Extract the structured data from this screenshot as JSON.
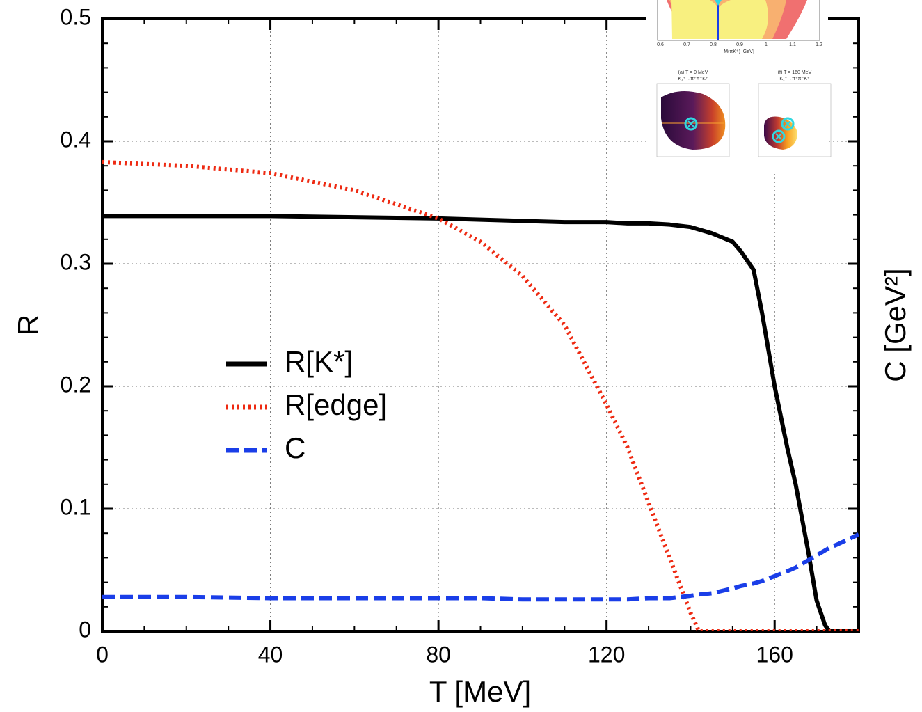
{
  "chart_data": {
    "type": "line",
    "xlabel": "T [MeV]",
    "ylabel": "R",
    "y2label": "C [GeV²]",
    "xlim": [
      0,
      180
    ],
    "ylim": [
      0,
      0.5
    ],
    "xticks": [
      0,
      40,
      80,
      120,
      160
    ],
    "yticks": [
      0,
      0.1,
      0.2,
      0.3,
      0.4,
      0.5
    ],
    "minor_xticks": [
      10,
      20,
      30,
      50,
      60,
      70,
      90,
      100,
      110,
      130,
      140,
      150,
      170
    ],
    "minor_yticks": [
      0.02,
      0.04,
      0.06,
      0.08,
      0.12,
      0.14,
      0.16,
      0.18,
      0.22,
      0.24,
      0.26,
      0.28,
      0.32,
      0.34,
      0.36,
      0.38,
      0.42,
      0.44,
      0.46,
      0.48
    ],
    "grid": true,
    "legend": "center-left",
    "x": [
      0,
      20,
      40,
      60,
      80,
      90,
      100,
      110,
      120,
      125,
      130,
      135,
      140,
      142,
      145,
      150,
      152,
      155,
      157,
      160,
      163,
      165,
      168,
      170,
      172,
      173,
      175,
      180
    ],
    "series": [
      {
        "name": "R[K*]",
        "color": "#000000",
        "dash": "solid",
        "values": [
          0.339,
          0.339,
          0.339,
          0.338,
          0.337,
          0.336,
          0.335,
          0.334,
          0.334,
          0.333,
          0.333,
          0.332,
          0.33,
          0.328,
          0.325,
          0.318,
          0.31,
          0.295,
          0.26,
          0.2,
          0.15,
          0.12,
          0.065,
          0.025,
          0.005,
          0,
          0,
          0
        ]
      },
      {
        "name": "R[edge]",
        "color": "#ee2a12",
        "dash": "dotted",
        "values": [
          0.383,
          0.38,
          0.374,
          0.36,
          0.337,
          0.318,
          0.29,
          0.25,
          0.185,
          0.15,
          0.105,
          0.06,
          0.015,
          0,
          0,
          0,
          0,
          0,
          0,
          0,
          0,
          0,
          0,
          0,
          0,
          0,
          0,
          0
        ]
      },
      {
        "name": "C",
        "color": "#1a3ee8",
        "dash": "dashed",
        "values": [
          0.028,
          0.028,
          0.027,
          0.027,
          0.027,
          0.027,
          0.026,
          0.026,
          0.026,
          0.026,
          0.027,
          0.027,
          0.029,
          0.03,
          0.031,
          0.035,
          0.037,
          0.039,
          0.041,
          0.045,
          0.049,
          0.052,
          0.058,
          0.062,
          0.066,
          0.068,
          0.071,
          0.079
        ]
      }
    ],
    "insets": {
      "spectrum_xlabel": "M(πK⁺) [GeV]",
      "spectrum_xticks": [
        "0.6",
        "0.7",
        "0.8",
        "0.9",
        "1",
        "1.1",
        "1.2"
      ],
      "panels": [
        {
          "title": "(a) T = 0 MeV",
          "subtitle": "K₁⁺→π⁺π⁻K⁺"
        },
        {
          "title": "(f) T = 160 MeV",
          "subtitle": "K₁⁺→π⁺π⁻K⁺"
        }
      ]
    }
  }
}
